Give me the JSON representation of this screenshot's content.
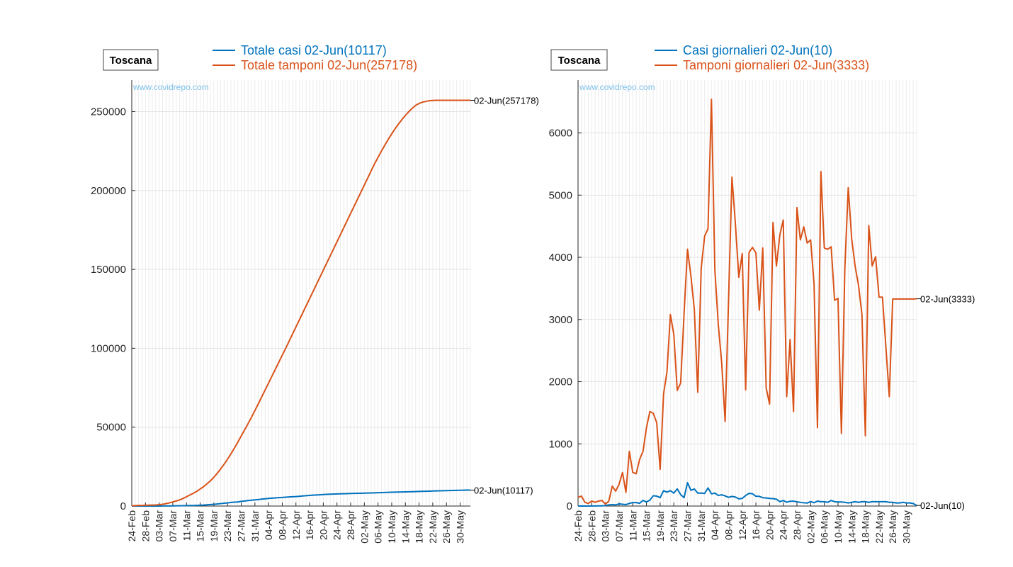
{
  "colors": {
    "cases": "#0072bd",
    "tests": "#d95319",
    "watermark": "#7fc1ea"
  },
  "dates": [
    "24-Feb",
    "25-Feb",
    "26-Feb",
    "27-Feb",
    "28-Feb",
    "29-Feb",
    "01-Mar",
    "02-Mar",
    "03-Mar",
    "04-Mar",
    "05-Mar",
    "06-Mar",
    "07-Mar",
    "08-Mar",
    "09-Mar",
    "10-Mar",
    "11-Mar",
    "12-Mar",
    "13-Mar",
    "14-Mar",
    "15-Mar",
    "16-Mar",
    "17-Mar",
    "18-Mar",
    "19-Mar",
    "20-Mar",
    "21-Mar",
    "22-Mar",
    "23-Mar",
    "24-Mar",
    "25-Mar",
    "26-Mar",
    "27-Mar",
    "28-Mar",
    "29-Mar",
    "30-Mar",
    "31-Mar",
    "01-Apr",
    "02-Apr",
    "03-Apr",
    "04-Apr",
    "05-Apr",
    "06-Apr",
    "07-Apr",
    "08-Apr",
    "09-Apr",
    "10-Apr",
    "11-Apr",
    "12-Apr",
    "13-Apr",
    "14-Apr",
    "15-Apr",
    "16-Apr",
    "17-Apr",
    "18-Apr",
    "19-Apr",
    "20-Apr",
    "21-Apr",
    "22-Apr",
    "23-Apr",
    "24-Apr",
    "25-Apr",
    "26-Apr",
    "27-Apr",
    "28-Apr",
    "29-Apr",
    "30-Apr",
    "01-May",
    "02-May",
    "03-May",
    "04-May",
    "05-May",
    "06-May",
    "07-May",
    "08-May",
    "09-May",
    "10-May",
    "11-May",
    "12-May",
    "13-May",
    "14-May",
    "15-May",
    "16-May",
    "17-May",
    "18-May",
    "19-May",
    "20-May",
    "21-May",
    "22-May",
    "23-May",
    "24-May",
    "25-May",
    "26-May",
    "27-May",
    "28-May",
    "29-May",
    "30-May",
    "31-May",
    "01-Jun",
    "02-Jun"
  ],
  "chart_data": [
    {
      "type": "line",
      "region_label": "Toscana",
      "watermark": "www.covidrepo.com",
      "x_tick_labels": [
        "24-Feb",
        "28-Feb",
        "03-Mar",
        "07-Mar",
        "11-Mar",
        "15-Mar",
        "19-Mar",
        "23-Mar",
        "27-Mar",
        "31-Mar",
        "04-Apr",
        "08-Apr",
        "12-Apr",
        "16-Apr",
        "20-Apr",
        "24-Apr",
        "28-Apr",
        "02-May",
        "06-May",
        "10-May",
        "14-May",
        "18-May",
        "22-May",
        "26-May",
        "30-May"
      ],
      "y_ticks": [
        0,
        50000,
        100000,
        150000,
        200000,
        250000
      ],
      "ylim": [
        0,
        270000
      ],
      "grid": true,
      "legend_position": "top",
      "series": [
        {
          "name": "Totale casi 02-Jun(10117)",
          "color_key": "cases",
          "end_label": "02-Jun(10117)",
          "values": [
            0,
            2,
            2,
            2,
            4,
            6,
            9,
            12,
            19,
            38,
            61,
            79,
            114,
            143,
            166,
            208,
            264,
            320,
            364,
            455,
            520,
            615,
            781,
            941,
            1076,
            1322,
            1546,
            1793,
            2001,
            2277,
            2461,
            2596,
            2972,
            3225,
            3500,
            3708,
            3918,
            4120,
            4412,
            4608,
            4816,
            4986,
            5167,
            5330,
            5470,
            5625,
            5770,
            5885,
            6008,
            6178,
            6382,
            6580,
            6738,
            6894,
            7028,
            7157,
            7280,
            7400,
            7510,
            7580,
            7669,
            7731,
            7808,
            7887,
            7955,
            8014,
            8066,
            8114,
            8187,
            8240,
            8320,
            8390,
            8460,
            8520,
            8610,
            8680,
            8745,
            8810,
            8870,
            8920,
            8980,
            9050,
            9110,
            9180,
            9250,
            9310,
            9380,
            9450,
            9520,
            9590,
            9660,
            9720,
            9780,
            9830,
            9880,
            9940,
            9990,
            10040,
            10080,
            10117
          ]
        },
        {
          "name": "Totale tamponi 02-Jun(257178)",
          "color_key": "tests",
          "end_label": "02-Jun(257178)",
          "values": [
            140,
            290,
            380,
            420,
            480,
            550,
            620,
            700,
            850,
            1100,
            1500,
            2000,
            2600,
            3200,
            3900,
            4800,
            5900,
            7000,
            8100,
            9300,
            10800,
            12300,
            14100,
            16000,
            18200,
            20800,
            23600,
            26500,
            29700,
            33100,
            36700,
            40500,
            44400,
            48300,
            52200,
            56300,
            60500,
            64800,
            69200,
            73600,
            78000,
            82400,
            86800,
            91200,
            95600,
            100000,
            104500,
            109000,
            113500,
            118000,
            122500,
            127000,
            131500,
            136000,
            140500,
            145000,
            149500,
            154000,
            158500,
            163000,
            167500,
            172000,
            176500,
            181000,
            185500,
            190000,
            194500,
            199000,
            203500,
            208000,
            212500,
            217000,
            221000,
            225000,
            228800,
            232500,
            235900,
            239200,
            242200,
            245000,
            247600,
            250000,
            252100,
            254000,
            255200,
            256000,
            256500,
            256900,
            257100,
            257178,
            257178,
            257178,
            257178,
            257178,
            257178,
            257178,
            257178,
            257178,
            257178,
            257178
          ]
        }
      ]
    },
    {
      "type": "line",
      "region_label": "Toscana",
      "watermark": "www.covidrepo.com",
      "x_tick_labels": [
        "24-Feb",
        "28-Feb",
        "03-Mar",
        "07-Mar",
        "11-Mar",
        "15-Mar",
        "19-Mar",
        "23-Mar",
        "27-Mar",
        "31-Mar",
        "04-Apr",
        "08-Apr",
        "12-Apr",
        "16-Apr",
        "20-Apr",
        "24-Apr",
        "28-Apr",
        "02-May",
        "06-May",
        "10-May",
        "14-May",
        "18-May",
        "22-May",
        "26-May",
        "30-May"
      ],
      "y_ticks": [
        0,
        1000,
        2000,
        3000,
        4000,
        5000,
        6000
      ],
      "ylim": [
        0,
        6850
      ],
      "grid": true,
      "legend_position": "top",
      "series": [
        {
          "name": "Casi giornalieri 02-Jun(10)",
          "color_key": "cases",
          "end_label": "02-Jun(10)",
          "values": [
            0,
            2,
            0,
            0,
            2,
            2,
            3,
            3,
            7,
            19,
            23,
            18,
            35,
            29,
            23,
            42,
            56,
            56,
            44,
            91,
            65,
            95,
            166,
            160,
            135,
            246,
            224,
            247,
            208,
            276,
            184,
            135,
            376,
            253,
            275,
            208,
            210,
            202,
            292,
            196,
            208,
            170,
            181,
            163,
            140,
            155,
            145,
            115,
            123,
            170,
            204,
            198,
            158,
            156,
            134,
            129,
            123,
            120,
            110,
            70,
            89,
            62,
            77,
            79,
            68,
            59,
            52,
            48,
            73,
            53,
            80,
            70,
            70,
            60,
            90,
            70,
            65,
            65,
            60,
            50,
            60,
            70,
            60,
            70,
            70,
            60,
            70,
            70,
            70,
            70,
            70,
            60,
            60,
            50,
            50,
            60,
            50,
            50,
            40,
            10
          ]
        },
        {
          "name": "Tamponi giornalieri 02-Jun(3333)",
          "color_key": "tests",
          "end_label": "02-Jun(3333)",
          "values": [
            140,
            160,
            60,
            40,
            80,
            60,
            80,
            90,
            30,
            80,
            320,
            240,
            350,
            540,
            220,
            880,
            540,
            520,
            750,
            880,
            1260,
            1520,
            1490,
            1340,
            590,
            1800,
            2160,
            3080,
            2760,
            1860,
            1980,
            3100,
            4130,
            3700,
            3160,
            1830,
            3820,
            4340,
            4460,
            6540,
            3800,
            2920,
            2300,
            1360,
            3300,
            5290,
            4540,
            3680,
            4060,
            1870,
            4080,
            4160,
            4070,
            3150,
            4150,
            1900,
            1640,
            4560,
            3860,
            4360,
            4600,
            1760,
            2680,
            1520,
            4800,
            4280,
            4490,
            4230,
            4280,
            3570,
            1260,
            5380,
            4150,
            4130,
            4170,
            3310,
            3340,
            1170,
            3820,
            5120,
            4300,
            3860,
            3550,
            3080,
            1130,
            4510,
            3860,
            4010,
            3360,
            3360,
            2560,
            1760,
            3330,
            3330,
            3330,
            3330,
            3330,
            3330,
            3330,
            3333
          ]
        }
      ]
    }
  ]
}
